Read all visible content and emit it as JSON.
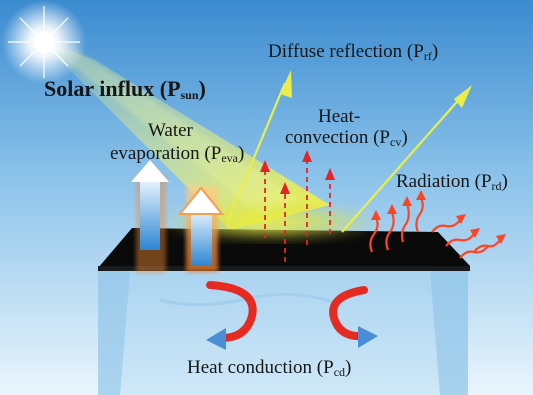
{
  "labels": {
    "solar": {
      "main": "Solar influx (P",
      "sub": "sun",
      "close": ")"
    },
    "diffuse": {
      "main": "Diffuse reflection (P",
      "sub": "rf",
      "close": ")"
    },
    "convection_l1": "Heat-",
    "convection": {
      "main": "convection (P",
      "sub": "cv",
      "close": ")"
    },
    "evaporation_l1": "Water",
    "evaporation": {
      "main": "evaporation (P",
      "sub": "eva",
      "close": ")"
    },
    "radiation": {
      "main": "Radiation (P",
      "sub": "rd",
      "close": ")"
    },
    "conduction": {
      "main": "Heat conduction (P",
      "sub": "cd",
      "close": ")"
    }
  },
  "colors": {
    "sky_top": "#3f8fd3",
    "sky_bottom": "#e6f3fb",
    "sun_beam": "#f3f56a",
    "reflection_arrow": "#e8ec4c",
    "convection_arrow": "#e0222a",
    "radiation_arrow": "#ff3a1f",
    "slab": "#0b0b0b",
    "water": "#b9dcf3",
    "conduction_arrow_red": "#e52a22",
    "conduction_arrow_blue": "#4a8fd6",
    "evap_arrow_blue": "#3f93d8",
    "evap_arrow_glow": "#f08a38"
  },
  "icons": [
    "sun-icon",
    "evaporation-arrow-icon",
    "convection-arrow-icon",
    "radiation-wave-icon",
    "reflection-arrow-icon",
    "conduction-arrow-icon"
  ]
}
